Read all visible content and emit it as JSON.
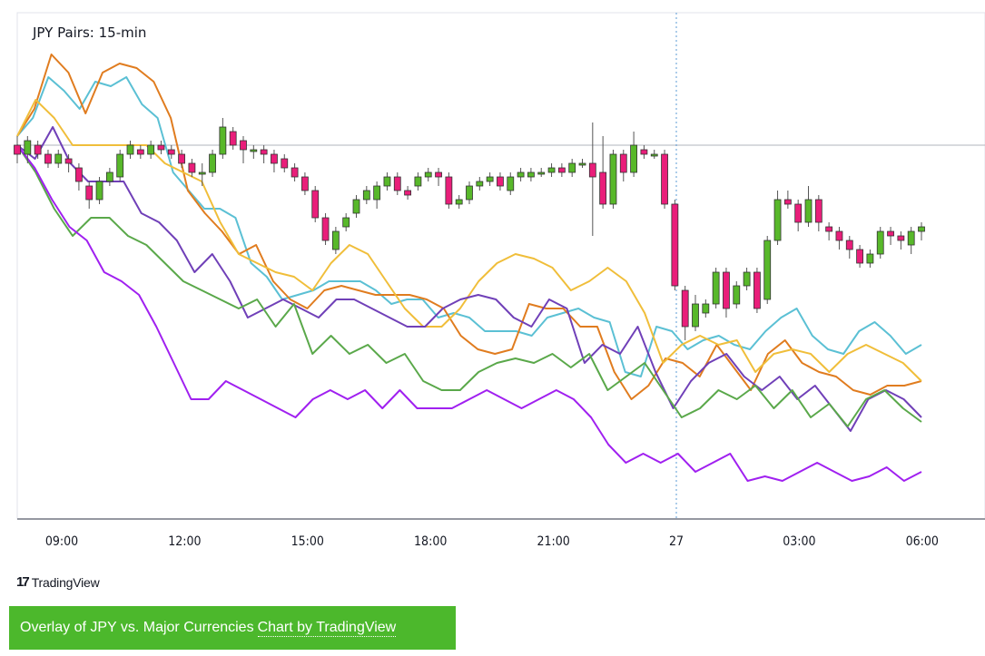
{
  "chart_data": {
    "type": "line",
    "title": "JPY Pairs: 15-min",
    "x_tick_labels": [
      "09:00",
      "12:00",
      "15:00",
      "18:00",
      "21:00",
      "27",
      "03:00",
      "06:00"
    ],
    "y_range": [
      0,
      100
    ],
    "gridlines": false,
    "reference_line_level": 76,
    "session_break_at": "27",
    "series_colors": {
      "teal": "#5bc0d4",
      "orange": "#e07c1f",
      "yellow": "#f0be3a",
      "purple": "#7040b8",
      "green": "#5aa84a",
      "magenta": "#a020f0"
    },
    "candle_colors": {
      "up": "#58b82a",
      "down": "#e91e7a"
    },
    "series": [
      {
        "color_key": "teal",
        "values": [
          78,
          82,
          91,
          88,
          84,
          90,
          89,
          91,
          85,
          82,
          70,
          66,
          62,
          62,
          60,
          50,
          47,
          42,
          43,
          44,
          46,
          46,
          46,
          44,
          41,
          42,
          42,
          38,
          39,
          38,
          35,
          35,
          35,
          34,
          38,
          39,
          40,
          38,
          37,
          26,
          25,
          36,
          35,
          31,
          33,
          34,
          32,
          31,
          35,
          38,
          40,
          34,
          31,
          30,
          35,
          37,
          34,
          30,
          32
        ]
      },
      {
        "color_key": "orange",
        "values": [
          78,
          84,
          96,
          92,
          83,
          92,
          94,
          93,
          90,
          82,
          66,
          61,
          57,
          52,
          54,
          46,
          42,
          40,
          44,
          45,
          44,
          43,
          43,
          43,
          42,
          40,
          34,
          31,
          30,
          31,
          41,
          40,
          40,
          36,
          36,
          26,
          20,
          23,
          29,
          28,
          25,
          32,
          27,
          22,
          30,
          33,
          28,
          26,
          25,
          22,
          21,
          23,
          23,
          24
        ]
      },
      {
        "color_key": "yellow",
        "values": [
          78,
          86,
          82,
          76,
          76,
          76,
          76,
          76,
          72,
          70,
          68,
          59,
          52,
          50,
          48,
          47,
          44,
          50,
          54,
          52,
          46,
          40,
          36,
          36,
          40,
          46,
          50,
          52,
          51,
          49,
          44,
          46,
          49,
          46,
          39,
          28,
          32,
          34,
          32,
          33,
          26,
          30,
          31,
          30,
          26,
          30,
          32,
          30,
          28,
          24
        ]
      },
      {
        "color_key": "purple",
        "values": [
          76,
          73,
          80,
          72,
          68,
          68,
          68,
          61,
          59,
          55,
          48,
          52,
          46,
          38,
          40,
          42,
          40,
          38,
          42,
          42,
          40,
          38,
          36,
          36,
          40,
          42,
          43,
          42,
          38,
          36,
          42,
          40,
          28,
          32,
          30,
          36,
          26,
          18,
          24,
          28,
          30,
          25,
          22,
          25,
          20,
          23,
          18,
          13,
          20,
          22,
          20,
          16
        ]
      },
      {
        "color_key": "green",
        "values": [
          76,
          70,
          62,
          56,
          60,
          60,
          56,
          54,
          50,
          46,
          44,
          42,
          40,
          42,
          36,
          41,
          30,
          34,
          30,
          32,
          28,
          30,
          24,
          22,
          22,
          26,
          28,
          29,
          28,
          30,
          27,
          30,
          22,
          25,
          28,
          22,
          16,
          18,
          22,
          20,
          23,
          18,
          22,
          16,
          19,
          14,
          20,
          22,
          18,
          15
        ]
      },
      {
        "color_key": "magenta",
        "values": [
          76,
          71,
          64,
          58,
          55,
          48,
          46,
          43,
          36,
          28,
          20,
          20,
          24,
          22,
          20,
          18,
          16,
          20,
          22,
          20,
          22,
          18,
          22,
          18,
          18,
          18,
          20,
          22,
          20,
          18,
          20,
          22,
          20,
          16,
          10,
          6,
          8,
          6,
          8,
          4,
          6,
          8,
          2,
          3,
          2,
          4,
          6,
          4,
          2,
          3,
          5,
          2,
          4
        ]
      }
    ],
    "candles": [
      {
        "o": 76,
        "c": 74,
        "h": 78,
        "l": 72
      },
      {
        "o": 74,
        "c": 77,
        "h": 78,
        "l": 72
      },
      {
        "o": 76,
        "c": 74,
        "h": 77,
        "l": 73
      },
      {
        "o": 74,
        "c": 72,
        "h": 75,
        "l": 71
      },
      {
        "o": 72,
        "c": 74,
        "h": 75,
        "l": 71
      },
      {
        "o": 73,
        "c": 72,
        "h": 74,
        "l": 70
      },
      {
        "o": 71,
        "c": 68,
        "h": 72,
        "l": 66
      },
      {
        "o": 67,
        "c": 64,
        "h": 68,
        "l": 62
      },
      {
        "o": 64,
        "c": 68,
        "h": 69,
        "l": 63
      },
      {
        "o": 68,
        "c": 70,
        "h": 71,
        "l": 67
      },
      {
        "o": 69,
        "c": 74,
        "h": 75,
        "l": 68
      },
      {
        "o": 74,
        "c": 76,
        "h": 77,
        "l": 73
      },
      {
        "o": 75,
        "c": 74,
        "h": 76,
        "l": 73
      },
      {
        "o": 74,
        "c": 76,
        "h": 77,
        "l": 73
      },
      {
        "o": 76,
        "c": 75,
        "h": 77,
        "l": 74
      },
      {
        "o": 75,
        "c": 74,
        "h": 76,
        "l": 73
      },
      {
        "o": 74,
        "c": 72,
        "h": 75,
        "l": 71
      },
      {
        "o": 72,
        "c": 70,
        "h": 73,
        "l": 69
      },
      {
        "o": 70,
        "c": 70,
        "h": 72,
        "l": 67
      },
      {
        "o": 70,
        "c": 74,
        "h": 75,
        "l": 69
      },
      {
        "o": 74,
        "c": 80,
        "h": 82,
        "l": 73
      },
      {
        "o": 79,
        "c": 76,
        "h": 80,
        "l": 75
      },
      {
        "o": 77,
        "c": 75,
        "h": 78,
        "l": 72
      },
      {
        "o": 75,
        "c": 75,
        "h": 76,
        "l": 73
      },
      {
        "o": 75,
        "c": 74,
        "h": 76,
        "l": 72
      },
      {
        "o": 74,
        "c": 72,
        "h": 75,
        "l": 70
      },
      {
        "o": 73,
        "c": 71,
        "h": 74,
        "l": 70
      },
      {
        "o": 71,
        "c": 69,
        "h": 72,
        "l": 68
      },
      {
        "o": 69,
        "c": 66,
        "h": 70,
        "l": 65
      },
      {
        "o": 66,
        "c": 60,
        "h": 67,
        "l": 59
      },
      {
        "o": 60,
        "c": 55,
        "h": 61,
        "l": 54
      },
      {
        "o": 53,
        "c": 57,
        "h": 58,
        "l": 52
      },
      {
        "o": 58,
        "c": 60,
        "h": 61,
        "l": 57
      },
      {
        "o": 61,
        "c": 64,
        "h": 65,
        "l": 60
      },
      {
        "o": 64,
        "c": 66,
        "h": 67,
        "l": 63
      },
      {
        "o": 64,
        "c": 67,
        "h": 68,
        "l": 62
      },
      {
        "o": 67,
        "c": 69,
        "h": 70,
        "l": 66
      },
      {
        "o": 69,
        "c": 66,
        "h": 70,
        "l": 65
      },
      {
        "o": 66,
        "c": 65,
        "h": 67,
        "l": 64
      },
      {
        "o": 67,
        "c": 69,
        "h": 70,
        "l": 66
      },
      {
        "o": 69,
        "c": 70,
        "h": 71,
        "l": 68
      },
      {
        "o": 70,
        "c": 69,
        "h": 71,
        "l": 67
      },
      {
        "o": 69,
        "c": 63,
        "h": 70,
        "l": 62
      },
      {
        "o": 63,
        "c": 64,
        "h": 65,
        "l": 62
      },
      {
        "o": 64,
        "c": 67,
        "h": 68,
        "l": 63
      },
      {
        "o": 67,
        "c": 68,
        "h": 69,
        "l": 66
      },
      {
        "o": 68,
        "c": 69,
        "h": 70,
        "l": 67
      },
      {
        "o": 69,
        "c": 67,
        "h": 70,
        "l": 66
      },
      {
        "o": 66,
        "c": 69,
        "h": 70,
        "l": 65
      },
      {
        "o": 69,
        "c": 70,
        "h": 71,
        "l": 68
      },
      {
        "o": 69,
        "c": 70,
        "h": 71,
        "l": 68
      },
      {
        "o": 70,
        "c": 70,
        "h": 71,
        "l": 69
      },
      {
        "o": 70,
        "c": 71,
        "h": 72,
        "l": 69
      },
      {
        "o": 71,
        "c": 70,
        "h": 72,
        "l": 69
      },
      {
        "o": 70,
        "c": 72,
        "h": 73,
        "l": 69
      },
      {
        "o": 72,
        "c": 72,
        "h": 73,
        "l": 71
      },
      {
        "o": 72,
        "c": 69,
        "h": 81,
        "l": 56
      },
      {
        "o": 70,
        "c": 63,
        "h": 78,
        "l": 62
      },
      {
        "o": 63,
        "c": 74,
        "h": 75,
        "l": 62
      },
      {
        "o": 74,
        "c": 70,
        "h": 75,
        "l": 68
      },
      {
        "o": 70,
        "c": 76,
        "h": 79,
        "l": 69
      },
      {
        "o": 75,
        "c": 74,
        "h": 76,
        "l": 73
      },
      {
        "o": 74,
        "c": 74,
        "h": 75,
        "l": 73
      },
      {
        "o": 74,
        "c": 63,
        "h": 75,
        "l": 62
      },
      {
        "o": 63,
        "c": 45,
        "h": 64,
        "l": 44
      },
      {
        "o": 44,
        "c": 36,
        "h": 45,
        "l": 33
      },
      {
        "o": 36,
        "c": 41,
        "h": 43,
        "l": 35
      },
      {
        "o": 39,
        "c": 41,
        "h": 42,
        "l": 38
      },
      {
        "o": 41,
        "c": 48,
        "h": 49,
        "l": 40
      },
      {
        "o": 48,
        "c": 40,
        "h": 49,
        "l": 38
      },
      {
        "o": 41,
        "c": 45,
        "h": 46,
        "l": 40
      },
      {
        "o": 45,
        "c": 48,
        "h": 49,
        "l": 44
      },
      {
        "o": 48,
        "c": 40,
        "h": 49,
        "l": 39
      },
      {
        "o": 42,
        "c": 55,
        "h": 56,
        "l": 41
      },
      {
        "o": 55,
        "c": 64,
        "h": 66,
        "l": 54
      },
      {
        "o": 64,
        "c": 63,
        "h": 66,
        "l": 62
      },
      {
        "o": 63,
        "c": 59,
        "h": 64,
        "l": 57
      },
      {
        "o": 59,
        "c": 64,
        "h": 67,
        "l": 58
      },
      {
        "o": 64,
        "c": 59,
        "h": 65,
        "l": 57
      },
      {
        "o": 58,
        "c": 57,
        "h": 59,
        "l": 55
      },
      {
        "o": 57,
        "c": 55,
        "h": 58,
        "l": 53
      },
      {
        "o": 55,
        "c": 53,
        "h": 56,
        "l": 51
      },
      {
        "o": 53,
        "c": 50,
        "h": 54,
        "l": 49
      },
      {
        "o": 50,
        "c": 52,
        "h": 53,
        "l": 49
      },
      {
        "o": 52,
        "c": 57,
        "h": 58,
        "l": 51
      },
      {
        "o": 57,
        "c": 56,
        "h": 58,
        "l": 54
      },
      {
        "o": 56,
        "c": 55,
        "h": 57,
        "l": 53
      },
      {
        "o": 54,
        "c": 57,
        "h": 58,
        "l": 52
      },
      {
        "o": 57,
        "c": 58,
        "h": 59,
        "l": 55
      }
    ]
  },
  "branding": {
    "logo_mark": "17",
    "logo_text": "TradingView"
  },
  "caption": {
    "prefix": "Overlay of JPY vs. Major Currencies",
    "link_text": "Chart by TradingView"
  }
}
